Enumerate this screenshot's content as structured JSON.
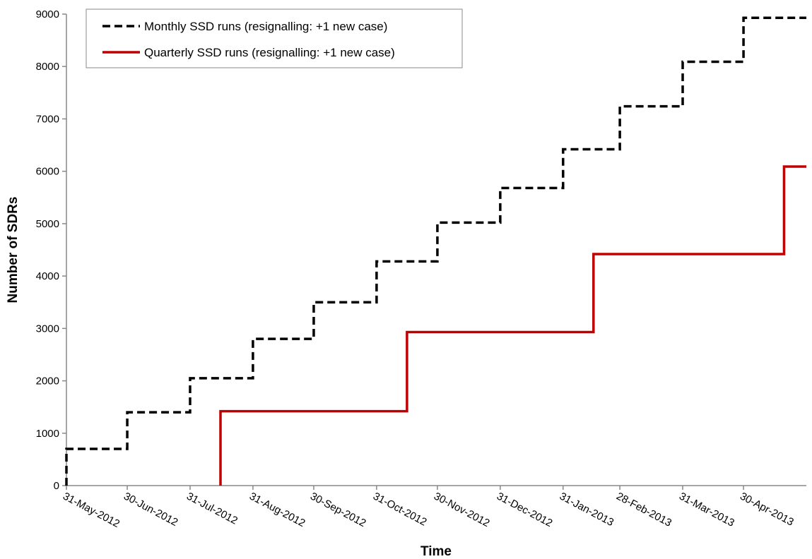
{
  "chart_data": {
    "type": "line",
    "step": true,
    "title": "",
    "xlabel": "Time",
    "ylabel": "Number of SDRs",
    "ylim": [
      0,
      9000
    ],
    "yticks": [
      0,
      1000,
      2000,
      3000,
      4000,
      5000,
      6000,
      7000,
      8000,
      9000
    ],
    "xlim": [
      "2012-05-31",
      "2013-05-31"
    ],
    "xticks": [
      {
        "date": "2012-05-31",
        "label": "31-May-2012"
      },
      {
        "date": "2012-06-30",
        "label": "30-Jun-2012"
      },
      {
        "date": "2012-07-31",
        "label": "31-Jul-2012"
      },
      {
        "date": "2012-08-31",
        "label": "31-Aug-2012"
      },
      {
        "date": "2012-09-30",
        "label": "30-Sep-2012"
      },
      {
        "date": "2012-10-31",
        "label": "31-Oct-2012"
      },
      {
        "date": "2012-11-30",
        "label": "30-Nov-2012"
      },
      {
        "date": "2012-12-31",
        "label": "31-Dec-2012"
      },
      {
        "date": "2013-01-31",
        "label": "31-Jan-2013"
      },
      {
        "date": "2013-02-28",
        "label": "28-Feb-2013"
      },
      {
        "date": "2013-03-31",
        "label": "31-Mar-2013"
      },
      {
        "date": "2013-04-30",
        "label": "30-Apr-2013"
      }
    ],
    "grid": false,
    "legend_position": "top-left",
    "series": [
      {
        "name": "Monthly SSD runs (resignalling: +1 new case)",
        "color": "#000000",
        "style": "dashed",
        "x": [
          "2012-05-31",
          "2012-06-30",
          "2012-07-31",
          "2012-08-31",
          "2012-09-30",
          "2012-10-31",
          "2012-11-30",
          "2012-12-31",
          "2013-01-31",
          "2013-02-28",
          "2013-03-31",
          "2013-04-30",
          "2013-05-31"
        ],
        "y": [
          700,
          1400,
          2050,
          2800,
          3500,
          4280,
          5020,
          5680,
          6420,
          7240,
          8090,
          8930,
          8930
        ]
      },
      {
        "name": "Quarterly SSD runs (resignalling: +1 new case)",
        "color": "#c00000",
        "style": "solid",
        "x": [
          "2012-08-15",
          "2012-11-15",
          "2013-02-15",
          "2013-05-20",
          "2013-05-31"
        ],
        "y": [
          1420,
          2930,
          4420,
          6090,
          6090
        ]
      }
    ]
  }
}
